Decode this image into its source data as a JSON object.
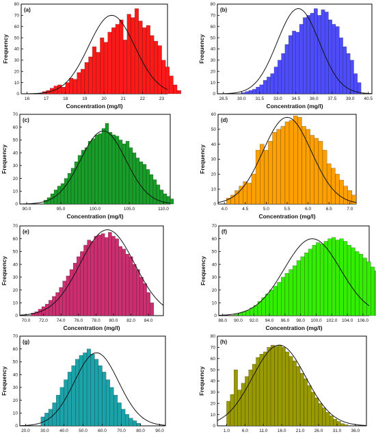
{
  "chart_data": [
    {
      "panel": "(a)",
      "type": "bar",
      "color": "#ff1a1a",
      "xlabel": "Concentration (mg/l)",
      "ylabel": "Frequency",
      "xlim": [
        15.7,
        23.3
      ],
      "ylim": [
        0,
        80
      ],
      "xticks": [
        16,
        17,
        18,
        19,
        20,
        21,
        22,
        23
      ],
      "xtick_labels": [
        "16",
        "17",
        "18",
        "19",
        "20",
        "21",
        "22",
        "23"
      ],
      "yticks": [
        0,
        10,
        20,
        30,
        40,
        50,
        60,
        70,
        80
      ],
      "ytick_labels": [
        "0",
        "10",
        "20",
        "30",
        "40",
        "50",
        "60",
        "70",
        "80"
      ],
      "bin_start": 16.8,
      "bin_width": 0.2,
      "values": [
        2,
        3,
        5,
        7,
        8,
        6,
        10,
        14,
        13,
        19,
        22,
        28,
        33,
        42,
        37,
        50,
        46,
        55,
        59,
        62,
        66,
        48,
        71,
        68,
        76,
        65,
        59,
        61,
        52,
        47,
        43,
        30,
        24,
        16,
        8,
        3
      ],
      "curve": {
        "mean": 20.4,
        "sd": 1.2,
        "peak": 70
      }
    },
    {
      "panel": "(b)",
      "type": "bar",
      "color": "#4d4dff",
      "xlabel": "Concentration (mg/l)",
      "ylabel": "Frequency",
      "xlim": [
        28.0,
        40.8
      ],
      "ylim": [
        0,
        80
      ],
      "xticks": [
        28.5,
        30.0,
        31.5,
        33.0,
        34.5,
        36.0,
        37.5,
        39.0,
        40.5
      ],
      "xtick_labels": [
        "28.5",
        "30.0",
        "31.5",
        "33.0",
        "34.5",
        "36.0",
        "37.5",
        "39.0",
        "40.5"
      ],
      "yticks": [
        0,
        10,
        20,
        30,
        40,
        50,
        60,
        70,
        80
      ],
      "ytick_labels": [
        "0",
        "10",
        "20",
        "30",
        "40",
        "50",
        "60",
        "70",
        "80"
      ],
      "bin_start": 30.0,
      "bin_width": 0.3,
      "values": [
        1,
        2,
        3,
        4,
        6,
        8,
        12,
        15,
        18,
        24,
        30,
        36,
        44,
        52,
        56,
        55,
        62,
        68,
        70,
        72,
        76,
        70,
        75,
        73,
        66,
        62,
        60,
        50,
        42,
        36,
        30,
        18,
        10
      ],
      "curve": {
        "mean": 34.7,
        "sd": 1.75,
        "peak": 76
      }
    },
    {
      "panel": "(c)",
      "type": "bar",
      "color": "#1a9e2a",
      "xlabel": "Concentration (mg/l)",
      "ylabel": "Frequency",
      "xlim": [
        89.0,
        111.0
      ],
      "ylim": [
        0,
        70
      ],
      "xticks": [
        90.0,
        95.0,
        100.0,
        105.0,
        110.0
      ],
      "xtick_labels": [
        "90.0",
        "95.0",
        "100.0",
        "105.0",
        "110.0"
      ],
      "yticks": [
        0,
        10,
        20,
        30,
        40,
        50,
        60,
        70
      ],
      "ytick_labels": [
        "0",
        "10",
        "20",
        "30",
        "40",
        "50",
        "60",
        "70"
      ],
      "bin_start": 92.5,
      "bin_width": 0.5,
      "values": [
        3,
        5,
        8,
        11,
        14,
        16,
        20,
        24,
        28,
        33,
        38,
        42,
        44,
        49,
        51,
        54,
        55,
        59,
        63,
        56,
        54,
        53,
        50,
        47,
        49,
        44,
        40,
        36,
        33,
        31,
        27,
        23,
        19,
        15,
        11,
        8,
        6,
        4
      ],
      "curve": {
        "mean": 101.2,
        "sd": 3.3,
        "peak": 57
      }
    },
    {
      "panel": "(d)",
      "type": "bar",
      "color": "#ff9f00",
      "xlabel": "Concentration (mg/l)",
      "ylabel": "Frequency",
      "xlim": [
        3.85,
        7.15
      ],
      "ylim": [
        0,
        60
      ],
      "xticks": [
        4.0,
        4.5,
        5.0,
        5.5,
        6.0,
        6.5,
        7.0
      ],
      "xtick_labels": [
        "4.0",
        "4.5",
        "5.0",
        "5.5",
        "6.0",
        "6.5",
        "7.0"
      ],
      "yticks": [
        0,
        10,
        20,
        30,
        40,
        50,
        60
      ],
      "ytick_labels": [
        "0",
        "10",
        "20",
        "30",
        "40",
        "50",
        "60"
      ],
      "bin_start": 4.05,
      "bin_width": 0.1,
      "values": [
        4,
        6,
        9,
        12,
        15,
        14,
        20,
        36,
        40,
        36,
        42,
        48,
        50,
        52,
        55,
        56,
        59,
        58,
        52,
        50,
        46,
        44,
        42,
        36,
        27,
        24,
        20,
        16,
        12,
        9,
        6
      ],
      "curve": {
        "mean": 5.5,
        "sd": 0.58,
        "peak": 58
      }
    },
    {
      "panel": "(e)",
      "type": "bar",
      "color": "#cc2e70",
      "xlabel": "Concentration (mg/l)",
      "ylabel": "Frequency",
      "xlim": [
        69.3,
        85.7
      ],
      "ylim": [
        0,
        70
      ],
      "xticks": [
        70.0,
        72.0,
        74.0,
        76.0,
        78.0,
        80.0,
        82.0,
        84.0
      ],
      "xtick_labels": [
        "70.0",
        "72.0",
        "74.0",
        "76.0",
        "78.0",
        "80.0",
        "82.0",
        "84.0"
      ],
      "yticks": [
        0,
        10,
        20,
        30,
        40,
        50,
        60,
        70
      ],
      "ytick_labels": [
        "0",
        "10",
        "20",
        "30",
        "40",
        "50",
        "60",
        "70"
      ],
      "bin_start": 70.6,
      "bin_width": 0.4,
      "values": [
        2,
        3,
        5,
        7,
        9,
        12,
        15,
        18,
        22,
        27,
        31,
        36,
        41,
        46,
        50,
        55,
        59,
        58,
        62,
        63,
        64,
        61,
        65,
        62,
        60,
        54,
        52,
        48,
        46,
        40,
        36,
        30,
        25,
        18,
        10
      ],
      "curve": {
        "mean": 79.3,
        "sd": 3.1,
        "peak": 67
      }
    },
    {
      "panel": "(f)",
      "type": "bar",
      "color": "#33ee00",
      "xlabel": "Concentration (mg/l)",
      "ylabel": "Frequency",
      "xlim": [
        87.5,
        106.8
      ],
      "ylim": [
        0,
        70
      ],
      "xticks": [
        88.0,
        90.0,
        92.0,
        94.0,
        96.0,
        98.0,
        100.0,
        102.0,
        104.0,
        106.0
      ],
      "xtick_labels": [
        "88.0",
        "90.0",
        "92.0",
        "94.0",
        "96.0",
        "98.0",
        "100.0",
        "102.0",
        "104.0",
        "106.0"
      ],
      "yticks": [
        0,
        10,
        20,
        30,
        40,
        50,
        60,
        70
      ],
      "ytick_labels": [
        "0",
        "10",
        "20",
        "30",
        "40",
        "50",
        "60",
        "70"
      ],
      "bin_start": 89.5,
      "bin_width": 0.5,
      "values": [
        1,
        2,
        3,
        4,
        6,
        8,
        11,
        14,
        17,
        20,
        23,
        26,
        30,
        33,
        36,
        39,
        43,
        46,
        49,
        52,
        55,
        57,
        56,
        58,
        60,
        61,
        59,
        60,
        58,
        55,
        53,
        50,
        48,
        45,
        42,
        38,
        35,
        30,
        25,
        18
      ],
      "curve": {
        "mean": 99.5,
        "sd": 3.6,
        "peak": 60
      }
    },
    {
      "panel": "(g)",
      "type": "bar",
      "color": "#1ba3aa",
      "xlabel": "",
      "ylabel": "Frequency",
      "xlim": [
        17.0,
        93.0
      ],
      "ylim": [
        0,
        70
      ],
      "xticks": [
        20.0,
        30.0,
        40.0,
        50.0,
        60.0,
        70.0,
        80.0,
        90.0
      ],
      "xtick_labels": [
        "20.0",
        "30.0",
        "40.0",
        "50.0",
        "60.0",
        "70.0",
        "80.0",
        "90.0"
      ],
      "yticks": [
        0,
        10,
        20,
        30,
        40,
        50,
        60,
        70
      ],
      "ytick_labels": [
        "0",
        "10",
        "20",
        "30",
        "40",
        "50",
        "60",
        "70"
      ],
      "bin_start": 28.0,
      "bin_width": 2.0,
      "values": [
        7,
        10,
        13,
        18,
        24,
        30,
        36,
        42,
        47,
        52,
        55,
        57,
        60,
        56,
        52,
        47,
        42,
        36,
        30,
        24,
        18,
        13,
        9,
        6,
        4,
        2
      ],
      "curve": {
        "mean": 57.0,
        "sd": 11.5,
        "peak": 57
      }
    },
    {
      "panel": "(h)",
      "type": "bar",
      "color": "#999900",
      "xlabel": "",
      "ylabel": "Frequency",
      "xlim": [
        -1.5,
        39.0
      ],
      "ylim": [
        0,
        80
      ],
      "xticks": [
        1.0,
        6.0,
        11.0,
        16.0,
        21.0,
        26.0,
        31.0,
        36.0
      ],
      "xtick_labels": [
        "1.0",
        "6.0",
        "11.0",
        "16.0",
        "21.0",
        "26.0",
        "31.0",
        "36.0"
      ],
      "yticks": [
        0,
        10,
        20,
        30,
        40,
        50,
        60,
        70,
        80
      ],
      "ytick_labels": [
        "0",
        "10",
        "20",
        "30",
        "40",
        "50",
        "60",
        "70",
        "80"
      ],
      "bin_start": 1.0,
      "bin_width": 1.0,
      "values": [
        22,
        28,
        50,
        32,
        38,
        44,
        50,
        55,
        61,
        64,
        66,
        70,
        72,
        71,
        72,
        70,
        66,
        62,
        58,
        53,
        47,
        42,
        36,
        30,
        25,
        20,
        16,
        12,
        9,
        6,
        4,
        2,
        1
      ],
      "curve": {
        "mean": 15.3,
        "sd": 7.2,
        "peak": 72
      }
    }
  ]
}
